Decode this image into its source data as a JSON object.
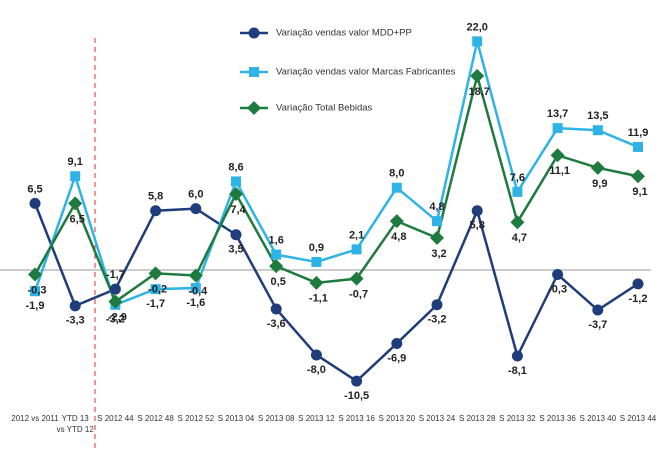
{
  "chart_data": {
    "type": "line",
    "categories": [
      "2012 vs 2011",
      "YTD 13\nvs YTD 12",
      "S 2012 44",
      "S 2012 48",
      "S 2012 52",
      "S 2013 04",
      "S 2013 08",
      "S 2013 12",
      "S 2013 16",
      "S 2013 20",
      "S 2013 24",
      "S 2013 28",
      "S 2013 32",
      "S 2013 36",
      "S 2013 40",
      "S 2013 44"
    ],
    "series": [
      {
        "name": "Variação vendas valor MDD+PP",
        "color": "#1f3d7a",
        "marker": "circle",
        "values": [
          6.5,
          -3.3,
          -1.7,
          5.8,
          6.0,
          3.5,
          -3.6,
          -8.0,
          -10.5,
          -6.9,
          -3.2,
          5.8,
          -8.1,
          -0.3,
          -3.7,
          -1.2
        ],
        "value_labels": [
          "6,5",
          "-3,3",
          "-1,7",
          "5,8",
          "6,0",
          "3,5",
          "-3,6",
          "-8,0",
          "-10,5",
          "-6,9",
          "-3,2",
          "5,8",
          "-8,1",
          "-0,3",
          "-3,7",
          "-1,2"
        ]
      },
      {
        "name": "Variação vendas valor Marcas Fabricantes",
        "color": "#2eb3e6",
        "marker": "square",
        "values": [
          -1.9,
          9.1,
          -3.2,
          -1.7,
          -1.6,
          8.6,
          1.6,
          0.9,
          2.1,
          8.0,
          4.8,
          22.0,
          7.6,
          13.7,
          13.5,
          11.9
        ],
        "value_labels": [
          "-1,9",
          "9,1",
          "-3,2",
          "-1,7",
          "-1,6",
          "8,6",
          "1,6",
          "0,9",
          "2,1",
          "8,0",
          "4,8",
          "22,0",
          "7,6",
          "13,7",
          "13,5",
          "11,9"
        ]
      },
      {
        "name": "Variação Total Bebidas",
        "color": "#1e7a3e",
        "marker": "diamond",
        "values": [
          -0.3,
          6.5,
          -2.9,
          -0.2,
          -0.4,
          7.4,
          0.5,
          -1.1,
          -0.7,
          4.8,
          3.2,
          18.7,
          4.7,
          11.1,
          9.9,
          9.1
        ],
        "value_labels": [
          "-0,3",
          "6,5",
          "-2,9",
          "-0,2",
          "-0,4",
          "7,4",
          "0,5",
          "-1,1",
          "-0,7",
          "4,8",
          "3,2",
          "18,7",
          "4,7",
          "11,1",
          "9,9",
          "9,1"
        ]
      }
    ],
    "ylim": [
      -12.5,
      25
    ]
  }
}
